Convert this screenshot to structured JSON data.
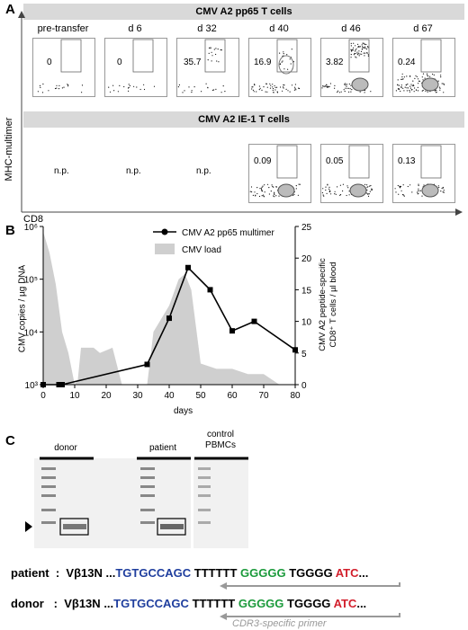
{
  "panelA": {
    "letter": "A",
    "banner_top": "CMV A2 pp65 T cells",
    "banner_bottom": "CMV A2 IE-1 T cells",
    "ylabel": "MHC-multimer",
    "xlabel": "CD8",
    "timepoints": [
      "pre-transfer",
      "d 6",
      "d 32",
      "d 40",
      "d 46",
      "d 67"
    ],
    "pp65_values": [
      "0",
      "0",
      "35.7",
      "16.9",
      "3.82",
      "0.24"
    ],
    "ie1_values": [
      "n.p.",
      "n.p.",
      "n.p.",
      "0.09",
      "0.05",
      "0.13"
    ]
  },
  "panelB": {
    "letter": "B",
    "chart_data": {
      "type": "line",
      "xlabel": "days",
      "ylabel_left": "CMV copies / µg DNA",
      "ylabel_right": "CMV A2 peptide-specific CD8⁺ T cells / µl blood",
      "xlim": [
        0,
        80
      ],
      "xticks": [
        0,
        10,
        20,
        30,
        40,
        50,
        60,
        70,
        80
      ],
      "ylim_left_log10": [
        3,
        6
      ],
      "yticks_left": [
        "10³",
        "10⁴",
        "10⁵",
        "10⁶"
      ],
      "ylim_right": [
        0,
        25
      ],
      "yticks_right": [
        0,
        5,
        10,
        15,
        20,
        25
      ],
      "legend": [
        "CMV A2 pp65 multimer",
        "CMV load"
      ],
      "series": [
        {
          "name": "CMV A2 pp65 multimer",
          "x": [
            0,
            5,
            6,
            33,
            40,
            46,
            53,
            60,
            67,
            80
          ],
          "y": [
            0,
            0,
            0,
            3.2,
            10.5,
            18.5,
            15,
            8.5,
            10,
            5.5
          ]
        },
        {
          "name": "CMV load",
          "x": [
            0,
            2,
            4,
            6,
            8,
            10,
            11,
            12,
            16,
            18,
            22,
            25,
            30,
            33,
            35,
            40,
            43,
            45,
            47,
            50,
            55,
            60,
            65,
            70,
            75,
            80
          ],
          "log10_y": [
            5.9,
            5.5,
            4.9,
            4.0,
            3.6,
            3.0,
            3.1,
            3.7,
            3.7,
            3.6,
            3.7,
            3.0,
            3.0,
            3.0,
            4.0,
            4.5,
            5.0,
            5.1,
            4.8,
            3.4,
            3.3,
            3.3,
            3.2,
            3.2,
            3.0,
            3.0
          ]
        }
      ]
    }
  },
  "panelC": {
    "letter": "C",
    "lanes": [
      "donor",
      "patient",
      "control\nPBMCs"
    ],
    "sequences": [
      {
        "name": "patient",
        "gene": "Vβ13N",
        "parts": [
          "...",
          "TGTGCCAGC",
          "TTTTTT",
          "GGGGG",
          "TGGGG",
          "ATC",
          "..."
        ]
      },
      {
        "name": "donor",
        "gene": "Vβ13N",
        "parts": [
          "...",
          "TGTGCCAGC",
          "TTTTTT",
          "GGGGG",
          "TGGGG",
          "ATC",
          "..."
        ]
      }
    ],
    "primer_label": "CDR3-specific primer"
  }
}
